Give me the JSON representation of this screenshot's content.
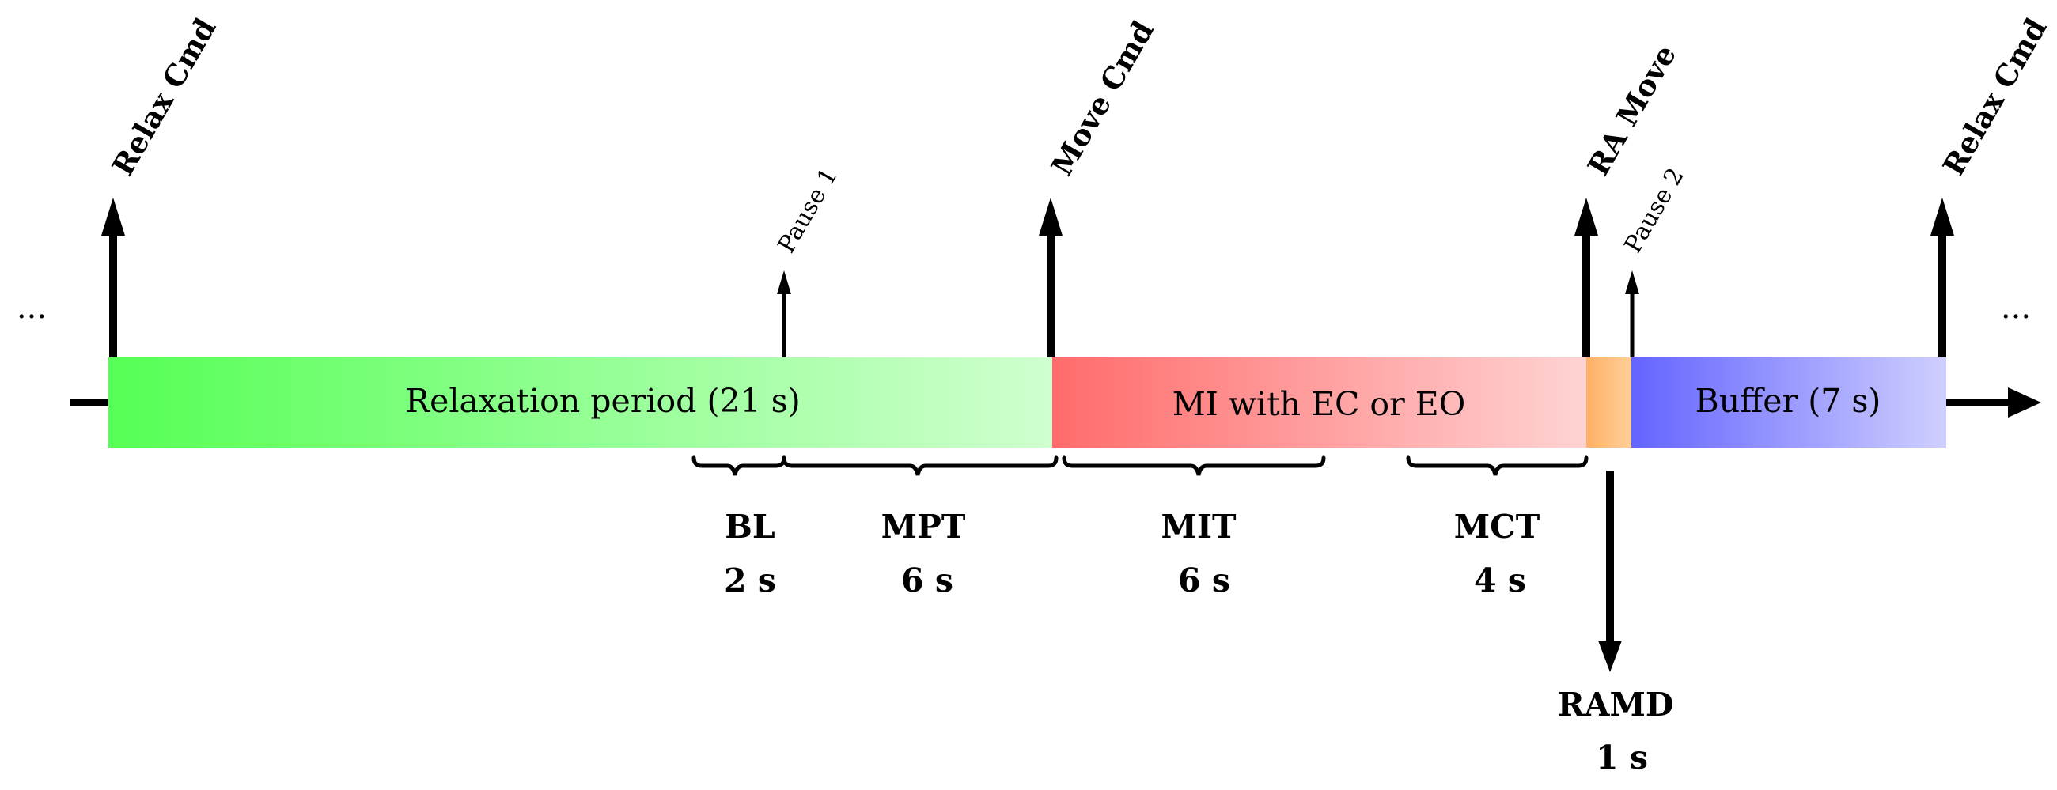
{
  "events": {
    "relax_cmd_1": "Relax Cmd",
    "pause_1": "Pause 1",
    "move_cmd": "Move Cmd",
    "ra_move": "RA Move",
    "pause_2": "Pause 2",
    "relax_cmd_2": "Relax Cmd"
  },
  "segments": {
    "relaxation": "Relaxation period (21 s)",
    "mi": "MI with EC or EO",
    "buffer": "Buffer (7 s)"
  },
  "intervals": {
    "bl": {
      "name": "BL",
      "duration": "2 s"
    },
    "mpt": {
      "name": "MPT",
      "duration": "6 s"
    },
    "mit": {
      "name": "MIT",
      "duration": "6 s"
    },
    "mct": {
      "name": "MCT",
      "duration": "4 s"
    },
    "ramd": {
      "name": "RAMD",
      "duration": "1 s"
    }
  },
  "ellipsis": {
    "left": "...",
    "right": "..."
  },
  "colors": {
    "relax_start": "#55ff55",
    "relax_end": "#cfffcf",
    "mi_start": "#ff6b6b",
    "mi_end": "#ffd3d3",
    "ramd": "#ffb066",
    "buffer_start": "#6464ff",
    "buffer_end": "#cfcfff"
  }
}
